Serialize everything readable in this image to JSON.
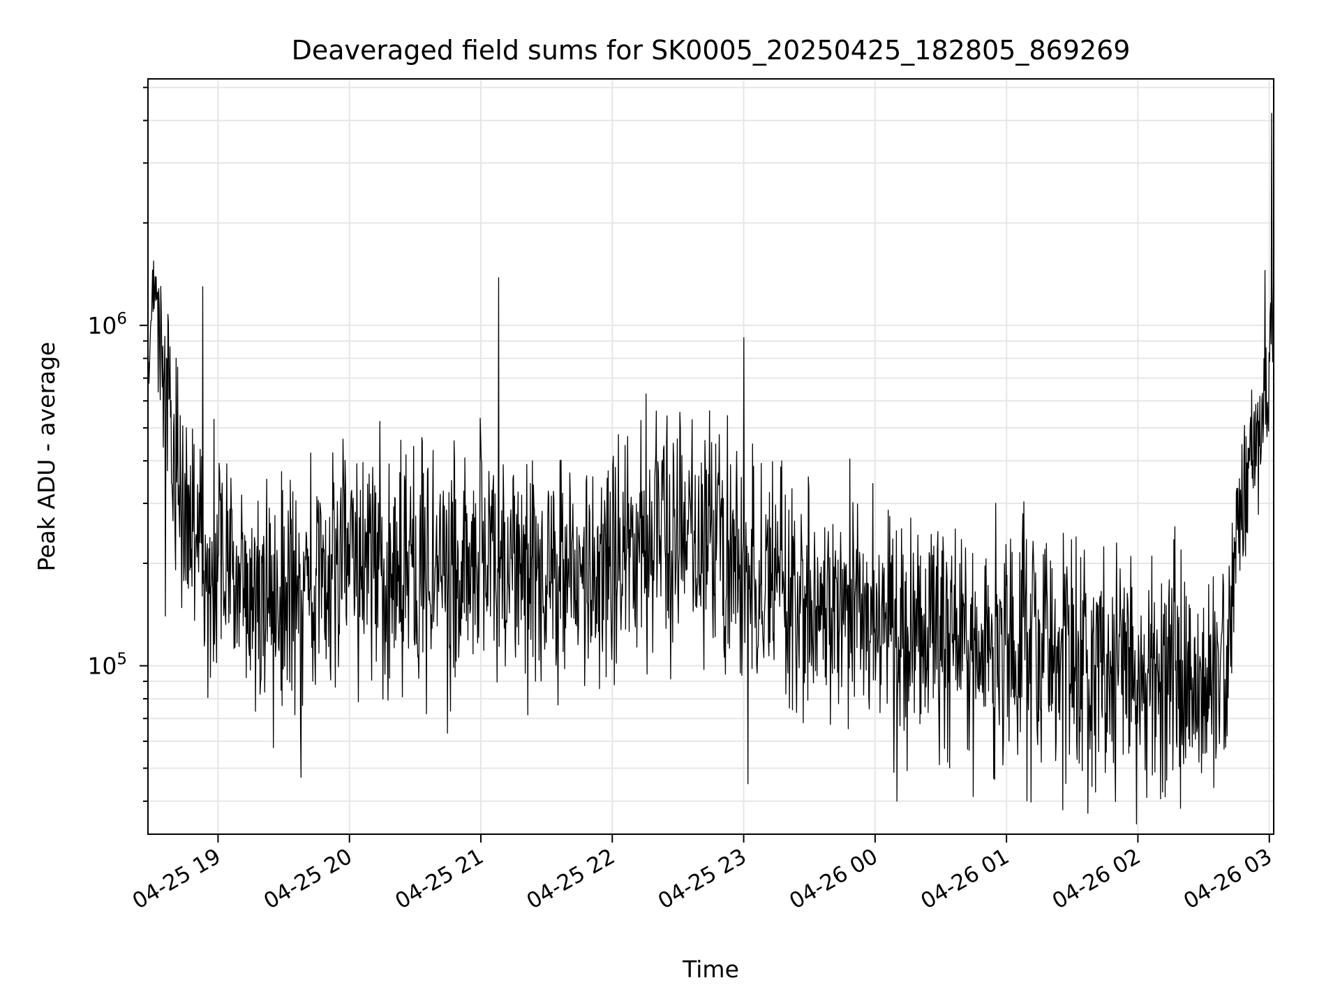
{
  "chart_data": {
    "type": "line",
    "title": "Deaveraged field sums for SK0005_20250425_182805_869269",
    "xlabel": "Time",
    "ylabel": "Peak ADU - average",
    "yscale": "log",
    "ylim": [
      32000,
      5300000
    ],
    "xlim": [
      "2025-04-25 18:28",
      "2025-04-26 03:02"
    ],
    "x_tick_values": [
      "2025-04-25 19:00",
      "2025-04-25 20:00",
      "2025-04-25 21:00",
      "2025-04-25 22:00",
      "2025-04-25 23:00",
      "2025-04-26 00:00",
      "2025-04-26 01:00",
      "2025-04-26 02:00",
      "2025-04-26 03:00"
    ],
    "x_tick_labels": [
      "04-25 19",
      "04-25 20",
      "04-25 21",
      "04-25 22",
      "04-25 23",
      "04-26 00",
      "04-26 01",
      "04-26 02",
      "04-26 03"
    ],
    "x_tick_rotation_deg": 30,
    "y_major_ticks": [
      {
        "value": 100000,
        "base": "10",
        "exp": "5"
      },
      {
        "value": 1000000,
        "base": "10",
        "exp": "6"
      }
    ],
    "grid": true,
    "line_color": "#000000",
    "grid_color": "#e6e6e6",
    "series": [
      {
        "x": [
          "2025-04-25 18:28",
          "2025-04-25 18:30",
          "2025-04-25 18:33",
          "2025-04-25 18:36",
          "2025-04-25 18:38",
          "2025-04-25 18:40",
          "2025-04-25 18:42",
          "2025-04-25 18:45",
          "2025-04-25 18:50",
          "2025-04-25 18:55",
          "2025-04-25 19:00",
          "2025-04-25 19:10",
          "2025-04-25 19:20",
          "2025-04-25 19:30",
          "2025-04-25 19:45",
          "2025-04-25 20:00",
          "2025-04-25 20:15",
          "2025-04-25 20:30",
          "2025-04-25 20:45",
          "2025-04-25 21:00",
          "2025-04-25 21:15",
          "2025-04-25 21:30",
          "2025-04-25 21:45",
          "2025-04-25 22:00",
          "2025-04-25 22:15",
          "2025-04-25 22:30",
          "2025-04-25 22:45",
          "2025-04-25 23:00",
          "2025-04-25 23:15",
          "2025-04-25 23:30",
          "2025-04-25 23:45",
          "2025-04-26 00:00",
          "2025-04-26 00:15",
          "2025-04-26 00:30",
          "2025-04-26 00:45",
          "2025-04-26 01:00",
          "2025-04-26 01:15",
          "2025-04-26 01:30",
          "2025-04-26 01:45",
          "2025-04-26 02:00",
          "2025-04-26 02:15",
          "2025-04-26 02:30",
          "2025-04-26 02:40",
          "2025-04-26 02:45",
          "2025-04-26 02:50",
          "2025-04-26 02:55",
          "2025-04-26 03:00",
          "2025-04-26 03:02"
        ],
        "mid": [
          700000,
          1200000,
          1050000,
          700000,
          450000,
          380000,
          330000,
          280000,
          240000,
          200000,
          180000,
          175000,
          165000,
          160000,
          190000,
          205000,
          195000,
          175000,
          185000,
          220000,
          200000,
          170000,
          175000,
          195000,
          230000,
          240000,
          215000,
          185000,
          165000,
          150000,
          145000,
          140000,
          130000,
          125000,
          120000,
          110000,
          105000,
          100000,
          95000,
          90000,
          85000,
          85000,
          95000,
          200000,
          350000,
          450000,
          800000,
          1100000
        ],
        "amp": [
          0.25,
          0.25,
          0.3,
          0.35,
          0.4,
          0.45,
          0.45,
          0.48,
          0.5,
          0.52,
          0.52,
          0.52,
          0.52,
          0.52,
          0.52,
          0.52,
          0.52,
          0.52,
          0.52,
          0.52,
          0.52,
          0.52,
          0.52,
          0.52,
          0.52,
          0.52,
          0.52,
          0.52,
          0.52,
          0.52,
          0.52,
          0.52,
          0.52,
          0.52,
          0.52,
          0.52,
          0.52,
          0.52,
          0.52,
          0.52,
          0.52,
          0.52,
          0.5,
          0.45,
          0.35,
          0.3,
          0.3,
          0.3
        ],
        "peaks": [
          {
            "x": "2025-04-25 18:36",
            "y": 1650000
          },
          {
            "x": "2025-04-25 18:53",
            "y": 1300000
          },
          {
            "x": "2025-04-25 21:08",
            "y": 1380000
          },
          {
            "x": "2025-04-25 23:00",
            "y": 920000
          },
          {
            "x": "2025-04-26 02:58",
            "y": 1450000
          },
          {
            "x": "2025-04-26 03:01",
            "y": 4200000
          }
        ],
        "troughs": [
          {
            "x": "2025-04-25 18:36",
            "y": 140000
          },
          {
            "x": "2025-04-25 19:38",
            "y": 47000
          },
          {
            "x": "2025-04-25 23:02",
            "y": 45000
          },
          {
            "x": "2025-04-26 00:10",
            "y": 40000
          },
          {
            "x": "2025-04-26 02:04",
            "y": 41000
          }
        ]
      }
    ]
  }
}
